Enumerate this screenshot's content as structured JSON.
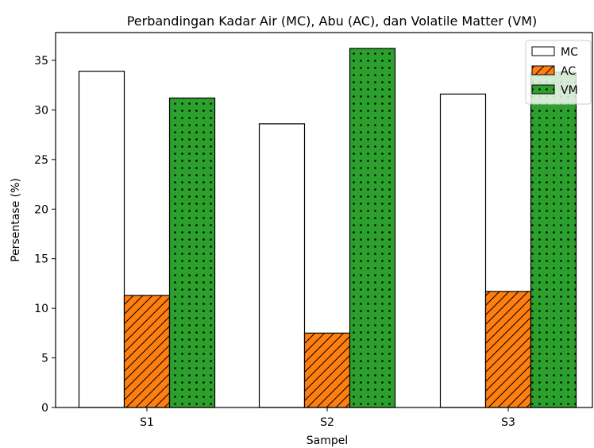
{
  "chart_data": {
    "type": "bar",
    "title": "Perbandingan Kadar Air (MC), Abu (AC), dan Volatile Matter (VM)",
    "xlabel": "Sampel",
    "ylabel": "Persentase (%)",
    "categories": [
      "S1",
      "S2",
      "S3"
    ],
    "ylim": [
      0,
      37.8
    ],
    "yticks": [
      0,
      5,
      10,
      15,
      20,
      25,
      30,
      35
    ],
    "series": [
      {
        "name": "MC",
        "values": [
          33.9,
          28.6,
          31.6
        ],
        "color": "#ffffff",
        "pattern": "none"
      },
      {
        "name": "AC",
        "values": [
          11.3,
          7.5,
          11.7
        ],
        "color": "#ff7f0e",
        "pattern": "diagonal-hatch"
      },
      {
        "name": "VM",
        "values": [
          31.2,
          36.2,
          33.8
        ],
        "color": "#2ca02c",
        "pattern": "dots"
      }
    ],
    "legend_position": "top-right",
    "grid": false
  }
}
